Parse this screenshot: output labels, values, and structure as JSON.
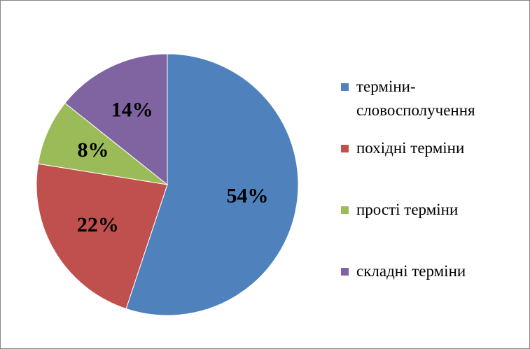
{
  "chart_data": {
    "type": "pie",
    "categories": [
      "терміни-словосполучення",
      "похідні терміни",
      "прості терміни",
      "складні терміни"
    ],
    "values": [
      54,
      22,
      8,
      14
    ],
    "value_labels": [
      "54%",
      "22%",
      "8%",
      "14%"
    ],
    "colors": [
      "#4f81bd",
      "#c0504d",
      "#9bbb59",
      "#8064a2"
    ]
  }
}
